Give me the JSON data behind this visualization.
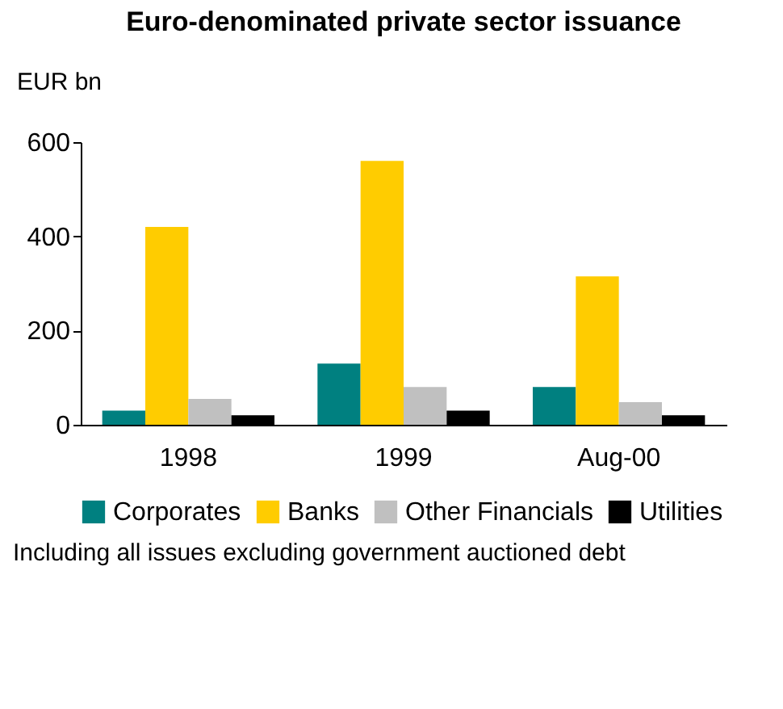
{
  "chart_data": {
    "type": "bar",
    "title": "Euro-denominated private sector issuance",
    "ylabel": "EUR bn",
    "categories": [
      "1998",
      "1999",
      "Aug-00"
    ],
    "series": [
      {
        "name": "Corporates",
        "color": "#008080",
        "values": [
          30,
          130,
          80
        ]
      },
      {
        "name": "Banks",
        "color": "#ffcc00",
        "values": [
          420,
          560,
          315
        ]
      },
      {
        "name": "Other Financials",
        "color": "#c0c0c0",
        "values": [
          55,
          80,
          48
        ]
      },
      {
        "name": "Utilities",
        "color": "#000000",
        "values": [
          20,
          30,
          20
        ]
      }
    ],
    "ylim": [
      0,
      600
    ],
    "yticks": [
      0,
      200,
      400,
      600
    ],
    "grid": false,
    "legend": "bottom",
    "annotations": [
      "Including all issues excluding government auctioned debt"
    ]
  }
}
